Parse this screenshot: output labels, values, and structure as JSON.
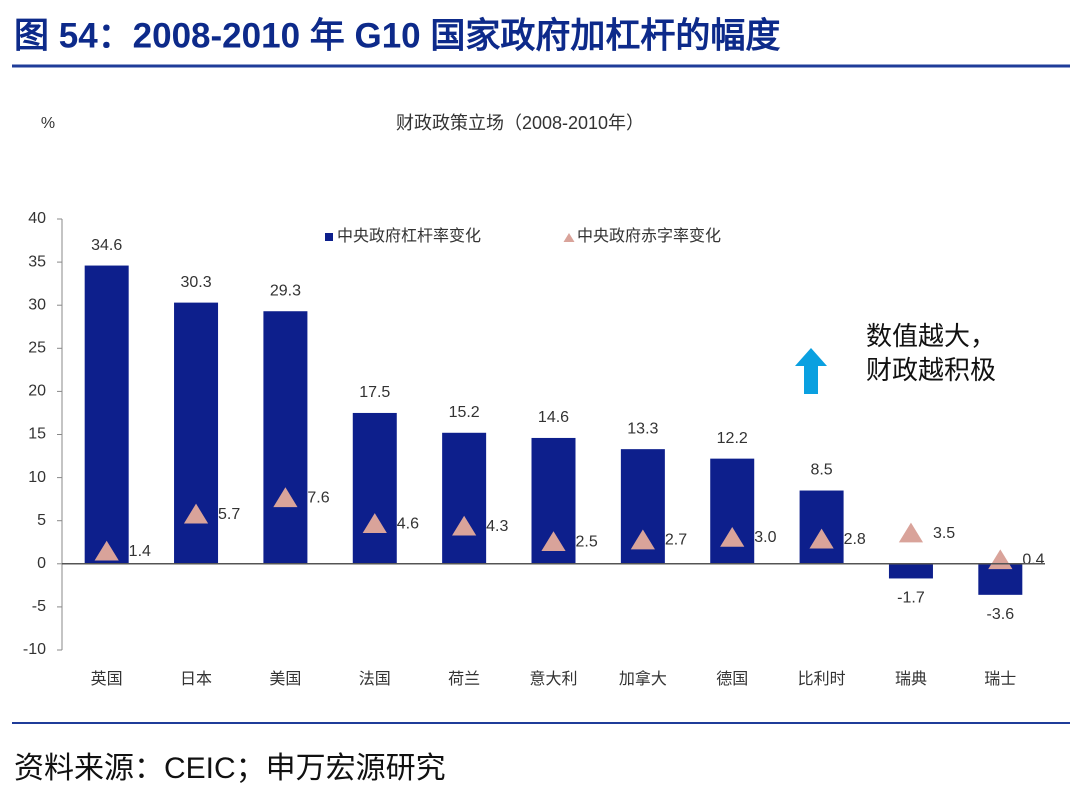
{
  "title": "图 54：2008-2010 年 G10 国家政府加杠杆的幅度",
  "source": "资料来源：CEIC；申万宏源研究",
  "chart_data": {
    "type": "bar",
    "title": "财政政策立场（2008-2010年）",
    "y_label": "%",
    "annotation": [
      "数值越大，",
      "财政越积极"
    ],
    "categories": [
      "英国",
      "日本",
      "美国",
      "法国",
      "荷兰",
      "意大利",
      "加拿大",
      "德国",
      "比利时",
      "瑞典",
      "瑞士"
    ],
    "series": [
      {
        "name": "中央政府杠杆率变化",
        "color": "#0d1f8c",
        "mark": "bar",
        "values": [
          34.6,
          30.3,
          29.3,
          17.5,
          15.2,
          14.6,
          13.3,
          12.2,
          8.5,
          -1.7,
          -3.6
        ]
      },
      {
        "name": "中央政府赤字率变化",
        "color": "#d9a39a",
        "mark": "triangle",
        "values": [
          1.4,
          5.7,
          7.6,
          4.6,
          4.3,
          2.5,
          2.7,
          3.0,
          2.8,
          3.5,
          0.4
        ],
        "value_labels": [
          "1.4",
          "5.7",
          "7.6",
          "4.6",
          "4.3",
          "2.5",
          "2.7",
          "3.0",
          "2.8",
          "3.5",
          "0.4"
        ]
      }
    ],
    "ylim": [
      -10,
      40
    ],
    "yticks": [
      -10,
      -5,
      0,
      5,
      10,
      15,
      20,
      25,
      30,
      35,
      40
    ],
    "grid": false
  }
}
